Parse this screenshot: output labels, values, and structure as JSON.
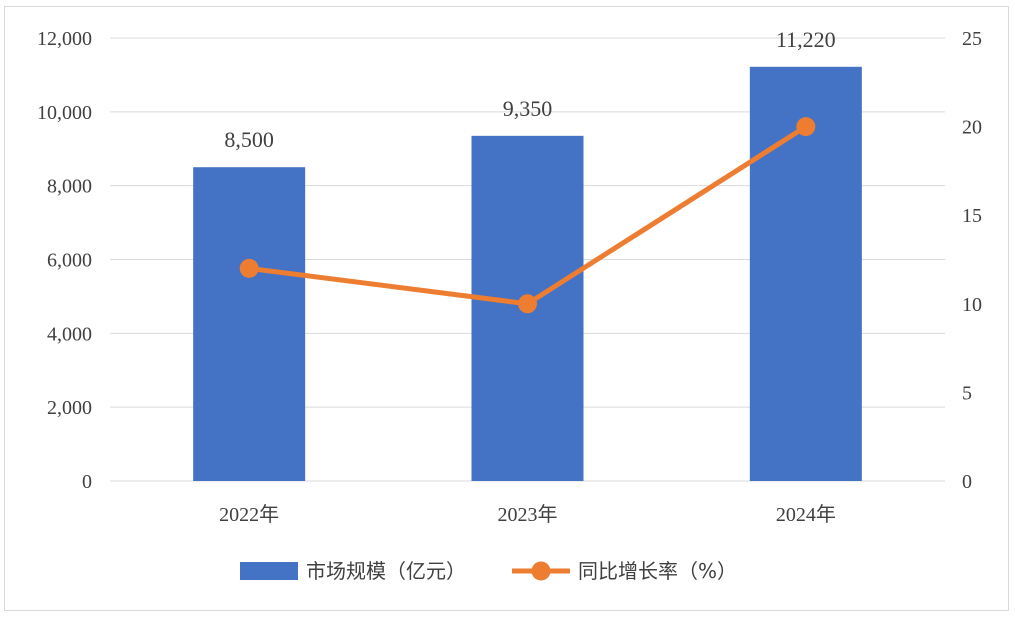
{
  "chart_data": {
    "type": "bar+line",
    "categories": [
      "2022年",
      "2023年",
      "2024年"
    ],
    "series": [
      {
        "name": "市场规模（亿元）",
        "type": "bar",
        "axis": "left",
        "color": "#4472C4",
        "values": [
          8500,
          9350,
          11220
        ],
        "labels": [
          "8,500",
          "9,350",
          "11,220"
        ]
      },
      {
        "name": "同比增长率（%）",
        "type": "line",
        "axis": "right",
        "color": "#ED7D31",
        "values": [
          12,
          10,
          20
        ]
      }
    ],
    "left_axis": {
      "min": 0,
      "max": 12000,
      "step": 2000,
      "ticks": [
        "0",
        "2,000",
        "4,000",
        "6,000",
        "8,000",
        "10,000",
        "12,000"
      ]
    },
    "right_axis": {
      "min": 0,
      "max": 25,
      "step": 5,
      "ticks": [
        "0",
        "5",
        "10",
        "15",
        "20",
        "25"
      ]
    },
    "grid": true,
    "legend_position": "bottom"
  }
}
